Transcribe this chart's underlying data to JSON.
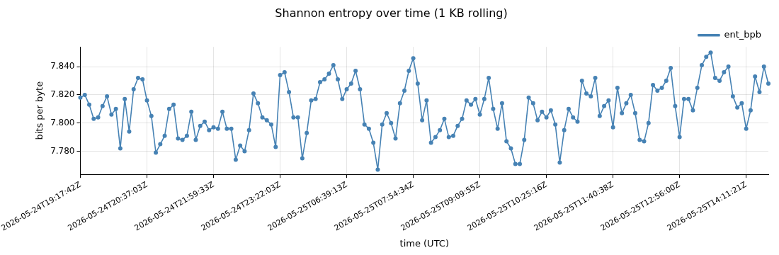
{
  "chart_data": {
    "type": "line",
    "title": "Shannon entropy over time (1 KB rolling)",
    "xlabel": "time (UTC)",
    "ylabel": "bits per byte",
    "categories": [
      "2026-05-24T19:17:42Z",
      null,
      null,
      null,
      null,
      null,
      null,
      null,
      null,
      null,
      null,
      null,
      null,
      null,
      null,
      "2026-05-24T20:37:03Z",
      null,
      null,
      null,
      null,
      null,
      null,
      null,
      null,
      null,
      null,
      null,
      null,
      null,
      null,
      "2026-05-24T21:59:33Z",
      null,
      null,
      null,
      null,
      null,
      null,
      null,
      null,
      null,
      null,
      null,
      null,
      null,
      null,
      "2026-05-24T23:22:03Z",
      null,
      null,
      null,
      null,
      null,
      null,
      null,
      null,
      null,
      null,
      null,
      null,
      null,
      null,
      "2026-05-25T06:39:13Z",
      null,
      null,
      null,
      null,
      null,
      null,
      null,
      null,
      null,
      null,
      null,
      null,
      null,
      null,
      "2026-05-25T07:54:34Z",
      null,
      null,
      null,
      null,
      null,
      null,
      null,
      null,
      null,
      null,
      null,
      null,
      null,
      null,
      "2026-05-25T09:09:55Z",
      null,
      null,
      null,
      null,
      null,
      null,
      null,
      null,
      null,
      null,
      null,
      null,
      null,
      null,
      "2026-05-25T10:25:16Z",
      null,
      null,
      null,
      null,
      null,
      null,
      null,
      null,
      null,
      null,
      null,
      null,
      null,
      null,
      "2026-05-25T11:40:38Z",
      null,
      null,
      null,
      null,
      null,
      null,
      null,
      null,
      null,
      null,
      null,
      null,
      null,
      null,
      "2026-05-25T12:56:00Z",
      null,
      null,
      null,
      null,
      null,
      null,
      null,
      null,
      null,
      null,
      null,
      null,
      null,
      null,
      "2026-05-25T14:11:21Z",
      null,
      null,
      null,
      null,
      null
    ],
    "series": [
      {
        "name": "ent_bpb",
        "color": "#4682b4",
        "values": [
          7.818,
          7.82,
          7.813,
          7.803,
          7.804,
          7.812,
          7.819,
          7.806,
          7.81,
          7.782,
          7.817,
          7.794,
          7.824,
          7.832,
          7.831,
          7.816,
          7.805,
          7.779,
          7.785,
          7.791,
          7.81,
          7.813,
          7.789,
          7.788,
          7.791,
          7.808,
          7.788,
          7.798,
          7.801,
          7.795,
          7.797,
          7.796,
          7.808,
          7.796,
          7.796,
          7.774,
          7.784,
          7.78,
          7.795,
          7.821,
          7.814,
          7.804,
          7.802,
          7.799,
          7.783,
          7.834,
          7.836,
          7.822,
          7.804,
          7.804,
          7.775,
          7.793,
          7.816,
          7.817,
          7.829,
          7.831,
          7.835,
          7.841,
          7.831,
          7.817,
          7.824,
          7.828,
          7.837,
          7.824,
          7.799,
          7.796,
          7.786,
          7.767,
          7.799,
          7.807,
          7.8,
          7.789,
          7.814,
          7.823,
          7.837,
          7.846,
          7.828,
          7.802,
          7.816,
          7.786,
          7.79,
          7.795,
          7.803,
          7.79,
          7.791,
          7.798,
          7.803,
          7.816,
          7.813,
          7.817,
          7.806,
          7.817,
          7.832,
          7.81,
          7.796,
          7.814,
          7.787,
          7.782,
          7.771,
          7.771,
          7.788,
          7.818,
          7.814,
          7.802,
          7.808,
          7.804,
          7.809,
          7.799,
          7.772,
          7.795,
          7.81,
          7.804,
          7.801,
          7.83,
          7.821,
          7.819,
          7.832,
          7.805,
          7.812,
          7.816,
          7.797,
          7.825,
          7.807,
          7.814,
          7.82,
          7.807,
          7.788,
          7.787,
          7.8,
          7.827,
          7.823,
          7.825,
          7.83,
          7.839,
          7.812,
          7.79,
          7.817,
          7.817,
          7.809,
          7.825,
          7.841,
          7.847,
          7.85,
          7.832,
          7.83,
          7.836,
          7.84,
          7.819,
          7.811,
          7.814,
          7.796,
          7.809,
          7.833,
          7.822,
          7.84,
          7.828
        ]
      }
    ],
    "ylim": [
      7.7636,
      7.854
    ],
    "yticks": [
      {
        "value": 7.78,
        "label": "7.780"
      },
      {
        "value": 7.8,
        "label": "7.800"
      },
      {
        "value": 7.82,
        "label": "7.820"
      },
      {
        "value": 7.84,
        "label": "7.840"
      }
    ],
    "grid": true,
    "legend": "top right",
    "marker": "circle",
    "line_style": "solid"
  }
}
